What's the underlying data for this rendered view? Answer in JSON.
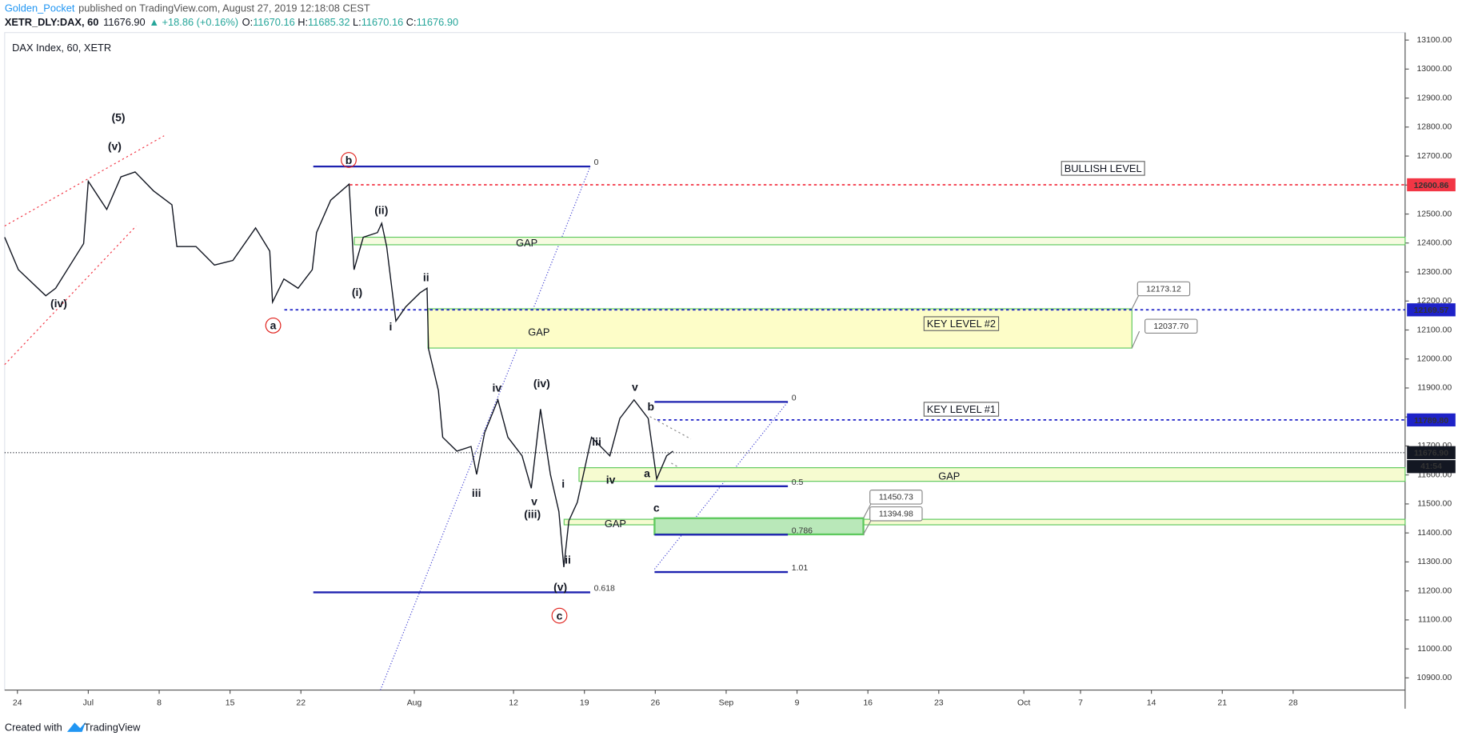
{
  "header": {
    "author": "Golden_Pocket",
    "published": "published on TradingView.com, August 27, 2019 12:18:08 CEST",
    "symbol": "XETR_DLY:DAX, 60",
    "last": "11676.90",
    "arrow": "▲",
    "change": "+18.86 (+0.16%)",
    "ohlc": [
      {
        "key": "O:",
        "value": "11670.16"
      },
      {
        "key": "H:",
        "value": "11685.32"
      },
      {
        "key": "L:",
        "value": "11670.16"
      },
      {
        "key": "C:",
        "value": "11676.90"
      }
    ]
  },
  "footer": {
    "created": "Created with",
    "brand": "TradingView"
  },
  "chart_data": {
    "type": "line",
    "title": "DAX Index, 60, XETR",
    "x": [
      -0.9,
      0.07,
      2.0,
      2.7,
      4.67,
      5.0,
      6.3,
      7.3,
      8.3,
      9.6,
      10.9,
      11.25,
      12.6,
      13.9,
      15.2,
      16.8,
      17.8,
      18.0,
      18.8,
      19.8,
      20.8,
      21.1,
      22.1,
      23.4,
      23.75,
      24.4,
      25.4,
      25.7,
      26.05,
      26.7,
      27.4,
      28.4,
      28.9,
      29.0,
      29.7,
      30.0,
      31.0,
      32.0,
      32.4,
      32.96,
      33.9,
      34.6,
      35.6,
      36.25,
      36.9,
      37.6,
      38.2,
      38.55,
      38.9,
      39.5,
      40.5,
      41.8,
      42.5,
      43.5,
      44.5,
      45.1,
      45.8,
      46.25
    ],
    "series": [
      {
        "name": "DAX",
        "color": "#131722",
        "values": [
          12420,
          12308,
          12218,
          12244,
          12398,
          12613,
          12516,
          12628,
          12645,
          12580,
          12532,
          12388,
          12388,
          12324,
          12340,
          12452,
          12372,
          12196,
          12276,
          12244,
          12308,
          12436,
          12548,
          12603,
          12308,
          12420,
          12436,
          12468,
          12388,
          12131,
          12180,
          12228,
          12244,
          12035,
          11891,
          11730,
          11682,
          11698,
          11602,
          11746,
          11859,
          11730,
          11666,
          11554,
          11827,
          11602,
          11474,
          11282,
          11442,
          11506,
          11730,
          11666,
          11795,
          11859,
          11795,
          11586,
          11666,
          11682
        ]
      }
    ],
    "xlim": [
      -0.9,
      97.9
    ],
    "xticks": [
      {
        "value": 0,
        "label": "24"
      },
      {
        "value": 5,
        "label": "Jul"
      },
      {
        "value": 10,
        "label": "8"
      },
      {
        "value": 15,
        "label": "15"
      },
      {
        "value": 20,
        "label": "22"
      },
      {
        "value": 28,
        "label": "Aug"
      },
      {
        "value": 35,
        "label": "12"
      },
      {
        "value": 40,
        "label": "19"
      },
      {
        "value": 45,
        "label": "26"
      },
      {
        "value": 50,
        "label": "Sep"
      },
      {
        "value": 55,
        "label": "9"
      },
      {
        "value": 60,
        "label": "16"
      },
      {
        "value": 65,
        "label": "23"
      },
      {
        "value": 71,
        "label": "Oct"
      },
      {
        "value": 75,
        "label": "7"
      },
      {
        "value": 80,
        "label": "14"
      },
      {
        "value": 85,
        "label": "21"
      },
      {
        "value": 90,
        "label": "28"
      }
    ],
    "ylim": [
      10858,
      13126
    ],
    "yticks": [
      {
        "value": 10900,
        "label": "10900.00"
      },
      {
        "value": 11000,
        "label": "11000.00"
      },
      {
        "value": 11100,
        "label": "11100.00"
      },
      {
        "value": 11200,
        "label": "11200.00"
      },
      {
        "value": 11300,
        "label": "11300.00"
      },
      {
        "value": 11400,
        "label": "11400.00"
      },
      {
        "value": 11500,
        "label": "11500.00"
      },
      {
        "value": 11600,
        "label": "11600.00"
      },
      {
        "value": 11700,
        "label": "11700.00"
      },
      {
        "value": 11800,
        "label": "11800.00"
      },
      {
        "value": 11900,
        "label": "11900.00"
      },
      {
        "value": 12000,
        "label": "12000.00"
      },
      {
        "value": 12100,
        "label": "12100.00"
      },
      {
        "value": 12200,
        "label": "12200.00"
      },
      {
        "value": 12300,
        "label": "12300.00"
      },
      {
        "value": 12400,
        "label": "12400.00"
      },
      {
        "value": 12500,
        "label": "12500.00"
      },
      {
        "value": 12600,
        "label": "12600.00"
      },
      {
        "value": 12700,
        "label": "12700.00"
      },
      {
        "value": 12800,
        "label": "12800.00"
      },
      {
        "value": 12900,
        "label": "12900.00"
      },
      {
        "value": 13000,
        "label": "13000.00"
      },
      {
        "value": 13100,
        "label": "13100.00"
      }
    ],
    "price_levels": [
      {
        "value": 12600.86,
        "color": "#f23645"
      },
      {
        "value": 12169.57,
        "color": "#1e22c8"
      },
      {
        "value": 11789.8,
        "label": "11789.80",
        "color": "#1e22c8"
      },
      {
        "value": 11676.9,
        "label": "11676.90",
        "color": "#131722"
      }
    ],
    "countdown": "41:54",
    "zones": [
      {
        "name": "GAP",
        "top": 12420,
        "bottom": 12394
      },
      {
        "name": "GAP",
        "top": 12173.12,
        "bottom": 12037.7,
        "bottom_label": "12037.70"
      },
      {
        "name": "GAP",
        "top": 11625,
        "bottom": 11578
      },
      {
        "name": "GAP",
        "top": 11447,
        "bottom": 11428
      },
      {
        "top": 11450.73,
        "bottom": 11394.98
      }
    ],
    "fib_levels": [
      {
        "ratio": 0,
        "value": 12664
      },
      {
        "ratio": 0.618,
        "value": 11195
      },
      {
        "ratio": 0,
        "value": 11852
      },
      {
        "ratio": 0.5,
        "value": 11561
      },
      {
        "ratio": 0.786,
        "value": 11394
      },
      {
        "ratio": 1.01,
        "value": 11265
      }
    ],
    "notes": [
      "BULLISH LEVEL",
      "KEY LEVEL #2",
      "KEY LEVEL #1"
    ],
    "waves": [
      "(5)",
      "(v)",
      "(iv)",
      "b",
      "a",
      "c",
      "(ii)",
      "(i)",
      "i",
      "ii",
      "iv",
      "iii",
      "(iv)",
      "v",
      "(iii)",
      "i",
      "ii",
      "(v)",
      "iii",
      "iv",
      "v",
      "b",
      "a",
      "c"
    ]
  }
}
